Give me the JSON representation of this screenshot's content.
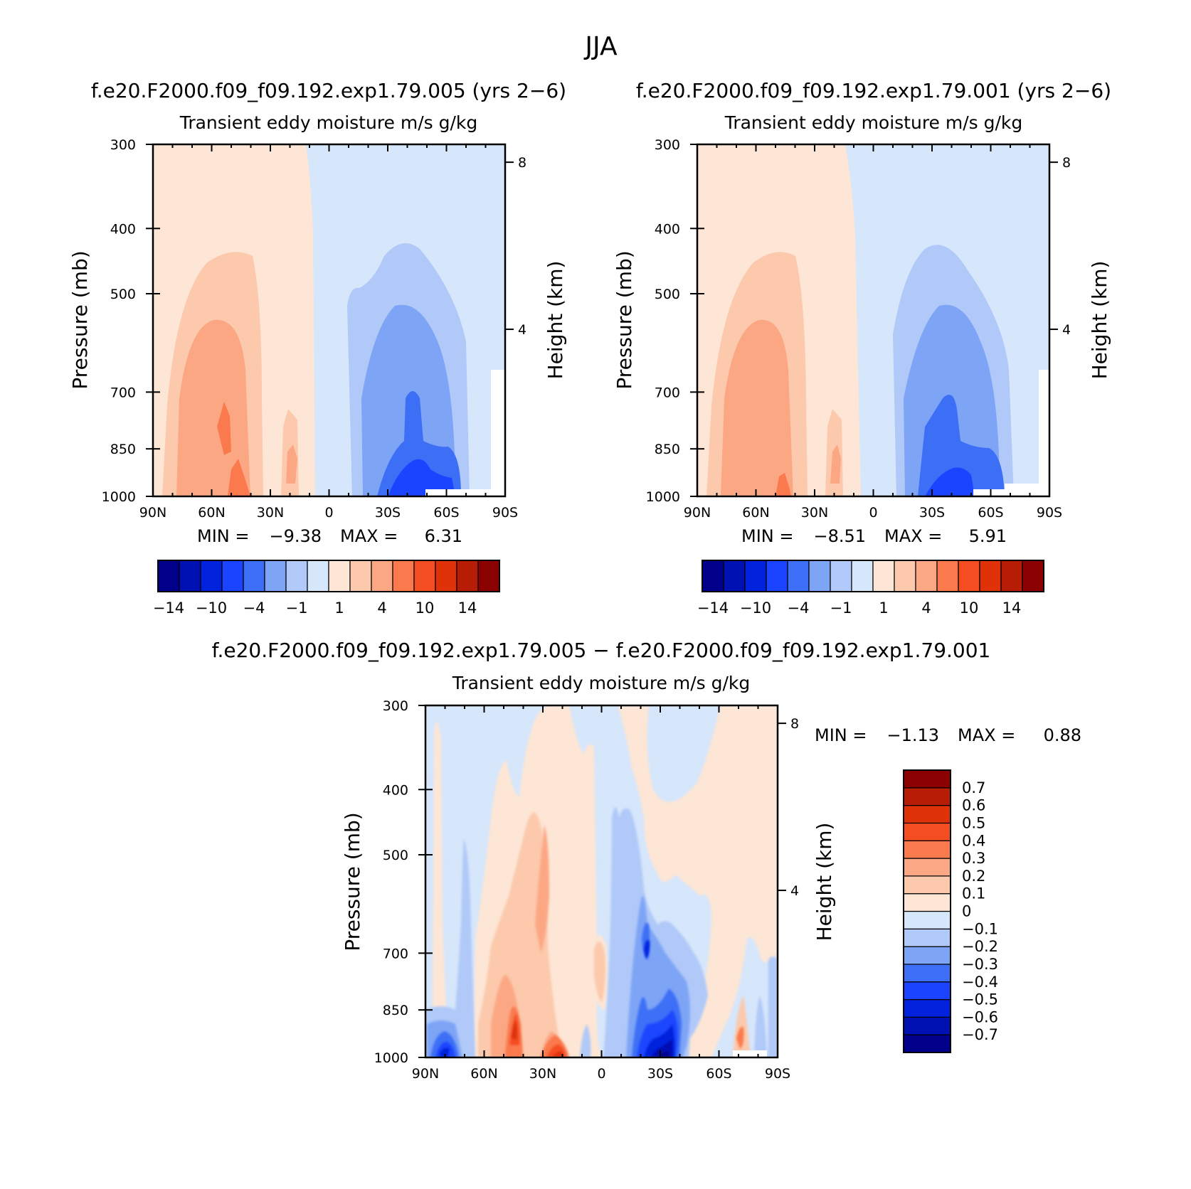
{
  "title": "JJA",
  "cmap_full": [
    "#00008b",
    "#0011b3",
    "#0022dd",
    "#1a44ff",
    "#3d6ff6",
    "#7ea4f6",
    "#b0c9f8",
    "#d6e6fb",
    "#fde6d5",
    "#fcc9ac",
    "#fca784",
    "#fa7a4e",
    "#f54d22",
    "#df3208",
    "#b71c04",
    "#8b0000"
  ],
  "cmap_diff": [
    "#00008b",
    "#0011b3",
    "#0022dd",
    "#1a44ff",
    "#3d6ff6",
    "#7ea4f6",
    "#b0c9f8",
    "#d6e6fb",
    "#fde6d5",
    "#fcc9ac",
    "#fca784",
    "#fa7a4e",
    "#f54d22",
    "#df3208",
    "#b71c04",
    "#8b0000"
  ],
  "panels": [
    {
      "run_title": "f.e20.F2000.f09_f09.192.exp1.79.005 (yrs 2−6)",
      "subtitle": "Transient eddy moisture m/s g/kg",
      "ylabel": "Pressure (mb)",
      "ylabel_right": "Height (km)",
      "min_label": "MIN =",
      "min_value": "−9.38",
      "max_label": "MAX =",
      "max_value": "6.31",
      "colorbar_labels": [
        "−14",
        "−10",
        "−4",
        "−1",
        "1",
        "4",
        "10",
        "14"
      ]
    },
    {
      "run_title": "f.e20.F2000.f09_f09.192.exp1.79.001 (yrs 2−6)",
      "subtitle": "Transient eddy moisture m/s g/kg",
      "ylabel": "Pressure (mb)",
      "ylabel_right": "Height (km)",
      "min_label": "MIN =",
      "min_value": "−8.51",
      "max_label": "MAX =",
      "max_value": "5.91",
      "colorbar_labels": [
        "−14",
        "−10",
        "−4",
        "−1",
        "1",
        "4",
        "10",
        "14"
      ]
    },
    {
      "run_title": "f.e20.F2000.f09_f09.192.exp1.79.005 − f.e20.F2000.f09_f09.192.exp1.79.001",
      "subtitle": "Transient eddy moisture m/s g/kg",
      "ylabel": "Pressure (mb)",
      "ylabel_right": "Height (km)",
      "min_label": "MIN =",
      "min_value": "−1.13",
      "max_label": "MAX =",
      "max_value": "0.88",
      "colorbar_labels": [
        "0.7",
        "0.6",
        "0.5",
        "0.4",
        "0.3",
        "0.2",
        "0.1",
        "0",
        "−0.1",
        "−0.2",
        "−0.3",
        "−0.4",
        "−0.5",
        "−0.6",
        "−0.7"
      ]
    }
  ],
  "axes": {
    "x_ticks": [
      "90N",
      "60N",
      "30N",
      "0",
      "30S",
      "60S",
      "90S"
    ],
    "y_ticks": [
      "300",
      "400",
      "500",
      "700",
      "850",
      "1000"
    ],
    "right_ticks": [
      "8",
      "4"
    ]
  },
  "chart_data": [
    {
      "type": "heatmap",
      "title": "f.e20.F2000.f09_f09.192.exp1.79.005 (yrs 2−6)",
      "subtitle": "Transient eddy moisture m/s g/kg",
      "xlabel": "",
      "ylabel": "Pressure (mb)",
      "ylabel_right": "Height (km)",
      "xlim": [
        90,
        -90
      ],
      "ylim": [
        1000,
        300
      ],
      "levels": [
        -14,
        -12,
        -10,
        -7,
        -4,
        -2,
        -1,
        0,
        1,
        2,
        4,
        7,
        10,
        12,
        14
      ],
      "min": -9.38,
      "max": 6.31,
      "features": [
        {
          "lat_range": [
            90,
            12
          ],
          "p_top": 300,
          "sign": "positive",
          "peak": 6.31,
          "peak_lat": 48,
          "peak_p": 1000
        },
        {
          "lat_range": [
            -10,
            -85
          ],
          "p_top": 420,
          "sign": "negative",
          "peak": -9.38,
          "peak_lat": -38,
          "peak_p": 1000
        }
      ]
    },
    {
      "type": "heatmap",
      "title": "f.e20.F2000.f09_f09.192.exp1.79.001 (yrs 2−6)",
      "subtitle": "Transient eddy moisture m/s g/kg",
      "xlabel": "",
      "ylabel": "Pressure (mb)",
      "ylabel_right": "Height (km)",
      "xlim": [
        90,
        -90
      ],
      "ylim": [
        1000,
        300
      ],
      "levels": [
        -14,
        -12,
        -10,
        -7,
        -4,
        -2,
        -1,
        0,
        1,
        2,
        4,
        7,
        10,
        12,
        14
      ],
      "min": -8.51,
      "max": 5.91,
      "features": [
        {
          "lat_range": [
            90,
            12
          ],
          "p_top": 300,
          "sign": "positive",
          "peak": 5.91,
          "peak_lat": 48,
          "peak_p": 1000
        },
        {
          "lat_range": [
            -10,
            -85
          ],
          "p_top": 420,
          "sign": "negative",
          "peak": -8.51,
          "peak_lat": -38,
          "peak_p": 1000
        }
      ]
    },
    {
      "type": "heatmap",
      "title": "f.e20.F2000.f09_f09.192.exp1.79.005 − f.e20.F2000.f09_f09.192.exp1.79.001",
      "subtitle": "Transient eddy moisture m/s g/kg",
      "xlabel": "",
      "ylabel": "Pressure (mb)",
      "ylabel_right": "Height (km)",
      "xlim": [
        90,
        -90
      ],
      "ylim": [
        1000,
        300
      ],
      "levels": [
        -0.7,
        -0.6,
        -0.5,
        -0.4,
        -0.3,
        -0.2,
        -0.1,
        0,
        0.1,
        0.2,
        0.3,
        0.4,
        0.5,
        0.6,
        0.7
      ],
      "min": -1.13,
      "max": 0.88,
      "features": [
        {
          "lat": 43,
          "p": 950,
          "sign": "positive",
          "peak": 0.88
        },
        {
          "lat": 30,
          "p": 1000,
          "sign": "positive",
          "peak": 0.7
        },
        {
          "lat": -35,
          "p": 980,
          "sign": "negative",
          "peak": -1.13
        },
        {
          "lat": -25,
          "p": 720,
          "sign": "negative",
          "peak": -0.5
        },
        {
          "lat": 78,
          "p": 980,
          "sign": "negative",
          "peak": -0.4
        }
      ]
    }
  ]
}
